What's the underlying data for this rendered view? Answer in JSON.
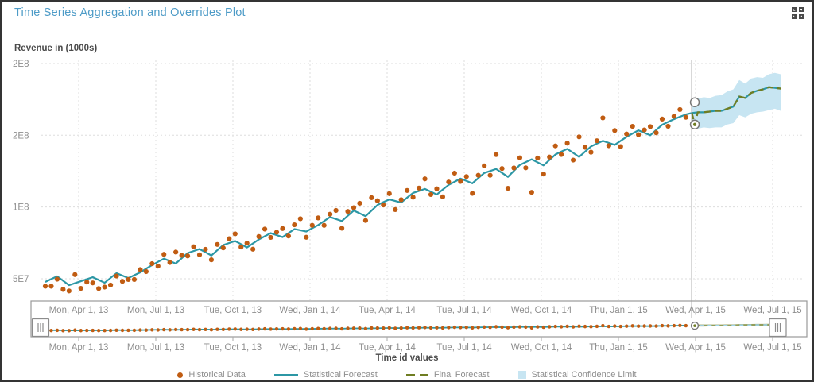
{
  "header": {
    "title": "Time Series Aggregation and Overrides Plot"
  },
  "colors": {
    "title_blue": "#4D9BC7",
    "orange": "#C05C12",
    "teal": "#2C97A5",
    "olive": "#6F7D22",
    "band": "#C7E5F2",
    "band_dash": "#9FD4EC",
    "grid": "#DDDDDD",
    "axis_text": "#8E8E8E",
    "dark_text": "#4A4A4A",
    "ref_line": "#8F8F8F",
    "box_border": "#999999",
    "handle_border": "#8C8C8C",
    "marker_ring": "#777777"
  },
  "chart_data": {
    "type": "line",
    "title": "Time Series Aggregation and Overrides Plot",
    "ylabel": "Revenue in (1000s)",
    "xlabel": "Time id values",
    "unit": "millions (values below are revenue in 1e6)",
    "grid": true,
    "legend_position": "bottom",
    "legend": [
      "Historical Data",
      "Statistical Forecast",
      "Final Forecast",
      "Statistical Confidence Limit"
    ],
    "y_ticks": [
      {
        "label": "2E8",
        "value": 200
      },
      {
        "label": "2E8",
        "value": 150
      },
      {
        "label": "1E8",
        "value": 100
      },
      {
        "label": "5E7",
        "value": 50
      }
    ],
    "x_ticks": [
      "Mon, Apr 1, 13",
      "Mon, Jul 1, 13",
      "Tue, Oct 1, 13",
      "Wed, Jan 1, 14",
      "Tue, Apr 1, 14",
      "Tue, Jul 1, 14",
      "Wed, Oct 1, 14",
      "Thu, Jan 1, 15",
      "Wed, Apr 1, 15",
      "Wed, Jul 1, 15"
    ],
    "forecast_start_tick": "Wed, Apr 1, 15",
    "series": {
      "historical": [
        44.8,
        44.8,
        49.7,
        42.6,
        41.5,
        52.9,
        43.3,
        47.7,
        47.1,
        43.2,
        44.2,
        45.6,
        51.9,
        48.2,
        49.5,
        49.5,
        56.4,
        55,
        60.5,
        58.8,
        67,
        61.3,
        68.6,
        66.3,
        65.9,
        72.3,
        66.7,
        70.5,
        63.2,
        73.9,
        71.5,
        77.9,
        81.3,
        72.1,
        74.8,
        70.6,
        79.4,
        84.6,
        78.8,
        82.4,
        85,
        79.8,
        87.6,
        91.8,
        78.9,
        87.2,
        92.4,
        87.2,
        95,
        97.6,
        85.2,
        96.9,
        99.5,
        102.6,
        90.6,
        106.5,
        104.4,
        101.4,
        109.3,
        98.2,
        105.1,
        111.5,
        106.8,
        113.2,
        119.6,
        108.7,
        112.7,
        107.1,
        117.4,
        123.6,
        117.8,
        121.2,
        109.5,
        122.1,
        128.7,
        122.1,
        136.5,
        126.8,
        113,
        127.2,
        134.3,
        127.3,
        110.2,
        134.1,
        123,
        134.8,
        142.6,
        136.6,
        144.5,
        132.7,
        148.9,
        141.6,
        138.2,
        146.2,
        162.1,
        142.7,
        153.3,
        142.1,
        150.9,
        156.2,
        150.4,
        153.7,
        156,
        151.7,
        161.3,
        156.3,
        163.2,
        167.9,
        162.5
      ],
      "statistical_fit": [
        47.8,
        49.8,
        51.7,
        48.6,
        45.5,
        46.9,
        48.3,
        49.7,
        51.1,
        49.2,
        47.2,
        50.6,
        53.9,
        52.2,
        50.5,
        52.5,
        54.4,
        57,
        59.5,
        61.8,
        64,
        62.3,
        60.6,
        64.3,
        67.9,
        69.3,
        70.7,
        68.5,
        66.2,
        69.9,
        73.5,
        74.9,
        76.3,
        74.1,
        71.8,
        74.6,
        77.4,
        79.6,
        81.8,
        80.4,
        79,
        81.8,
        84.6,
        83.8,
        82.9,
        85.2,
        87.4,
        90.2,
        93,
        91.6,
        90.2,
        93.9,
        97.5,
        95.6,
        93.6,
        97.5,
        101.4,
        103.4,
        105.3,
        104.2,
        103.1,
        106.5,
        109.8,
        111.2,
        112.6,
        110.7,
        108.7,
        112.1,
        115.4,
        117.6,
        119.8,
        118.2,
        116.5,
        120.1,
        123.7,
        125.1,
        126.5,
        123.8,
        121,
        125.2,
        129.3,
        131.3,
        133.2,
        131.1,
        129,
        132.8,
        136.6,
        138.6,
        140.5,
        137.7,
        134.9,
        138.6,
        142.2,
        144.2,
        146.1,
        144.7,
        143.3,
        146.1,
        148.9,
        151.2,
        153.4,
        151.7,
        150,
        153.7,
        157.3,
        159.3,
        161.2,
        162.9,
        164.5
      ],
      "statistical_forecast": [
        165.5,
        166,
        166,
        166.5,
        167,
        167,
        168.5,
        170,
        177,
        176,
        179.5,
        181,
        182,
        183.5,
        183,
        182.5
      ],
      "final_forecast": {
        "weeks": [
          109,
          109.5,
          110,
          111,
          112,
          113,
          114,
          115,
          116,
          117,
          118,
          119,
          120,
          121,
          122,
          123,
          124
        ],
        "values": [
          165.5,
          157.5,
          166,
          166,
          166.5,
          167,
          167,
          168.5,
          170,
          177,
          176,
          179.5,
          181,
          182,
          183.5,
          183,
          182.5
        ]
      },
      "confidence_upper": [
        174,
        175.5,
        176.5,
        176,
        177.5,
        178,
        180.5,
        182,
        188.5,
        186,
        189.5,
        190.5,
        190,
        192.5,
        193.5,
        192.5
      ],
      "confidence_lower": [
        156,
        154.5,
        155.5,
        155,
        155.5,
        155.5,
        157.5,
        158.5,
        164,
        162.5,
        165,
        166,
        166.5,
        167.5,
        168.5,
        167
      ]
    },
    "override_markers": {
      "original_value": 173,
      "override_value": 157.5
    }
  },
  "slider": {
    "x_ticks": [
      "Mon, Apr 1, 13",
      "Mon, Jul 1, 13",
      "Tue, Oct 1, 13",
      "Wed, Jan 1, 14",
      "Tue, Apr 1, 14",
      "Tue, Jul 1, 14",
      "Wed, Oct 1, 14",
      "Thu, Jan 1, 15",
      "Wed, Apr 1, 15",
      "Wed, Jul 1, 15"
    ]
  }
}
